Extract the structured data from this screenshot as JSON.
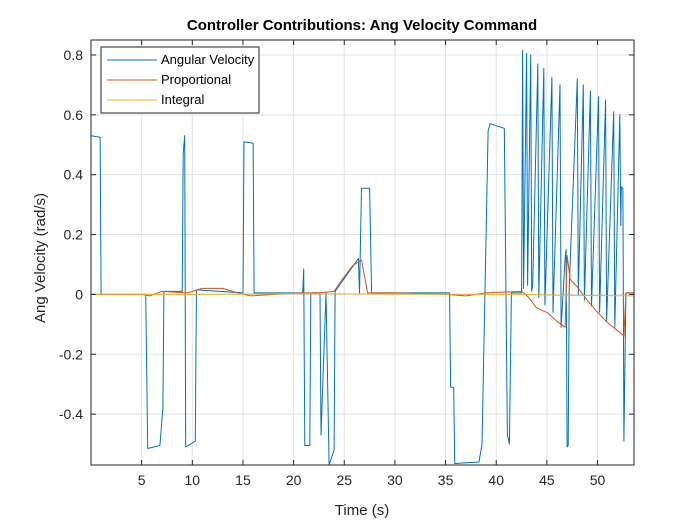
{
  "chart_data": {
    "type": "line",
    "title": "Controller Contributions: Ang Velocity Command",
    "xlabel": "Time (s)",
    "ylabel": "Ang Velocity (rad/s)",
    "xlim": [
      0,
      53.6
    ],
    "ylim": [
      -0.57,
      0.85
    ],
    "xticks": [
      5,
      10,
      15,
      20,
      25,
      30,
      35,
      40,
      45,
      50
    ],
    "yticks": [
      -0.4,
      -0.2,
      0,
      0.2,
      0.4,
      0.6,
      0.8
    ],
    "ytick_labels": [
      "-0.4",
      "-0.2",
      "0",
      "0.2",
      "0.4",
      "0.6",
      "0.8"
    ],
    "grid": true,
    "legend_position": "top-left",
    "series": [
      {
        "name": "Angular Velocity",
        "color": "#0072BD",
        "points": [
          [
            0,
            0.53
          ],
          [
            0.9,
            0.525
          ],
          [
            1.0,
            0
          ],
          [
            5.4,
            0
          ],
          [
            5.6,
            -0.515
          ],
          [
            6.8,
            -0.505
          ],
          [
            7.1,
            -0.38
          ],
          [
            7.2,
            0.01
          ],
          [
            9.0,
            0.01
          ],
          [
            9.1,
            0.47
          ],
          [
            9.25,
            0.53
          ],
          [
            9.35,
            -0.51
          ],
          [
            10.3,
            -0.49
          ],
          [
            10.4,
            0.015
          ],
          [
            15.0,
            0.005
          ],
          [
            15.1,
            0.51
          ],
          [
            16.0,
            0.505
          ],
          [
            16.1,
            0.005
          ],
          [
            20.9,
            0.005
          ],
          [
            21.0,
            0.085
          ],
          [
            21.1,
            -0.505
          ],
          [
            21.6,
            -0.505
          ],
          [
            21.7,
            0.005
          ],
          [
            22.6,
            0.005
          ],
          [
            22.7,
            -0.47
          ],
          [
            23.2,
            0.005
          ],
          [
            23.5,
            -0.57
          ],
          [
            24.0,
            -0.52
          ],
          [
            24.1,
            0.01
          ],
          [
            26.4,
            0.12
          ],
          [
            26.5,
            0.005
          ],
          [
            26.7,
            0.355
          ],
          [
            27.5,
            0.355
          ],
          [
            27.7,
            0.005
          ],
          [
            35.4,
            0.005
          ],
          [
            35.5,
            -0.31
          ],
          [
            35.8,
            -0.31
          ],
          [
            35.9,
            -0.565
          ],
          [
            38.3,
            -0.56
          ],
          [
            38.6,
            -0.5
          ],
          [
            39.2,
            0.545
          ],
          [
            39.4,
            0.57
          ],
          [
            40.8,
            0.555
          ],
          [
            41.1,
            -0.47
          ],
          [
            41.3,
            -0.5
          ],
          [
            41.5,
            0.005
          ],
          [
            42.5,
            0.005
          ],
          [
            42.6,
            0.815
          ],
          [
            42.7,
            0.02
          ],
          [
            43.0,
            0.805
          ],
          [
            43.1,
            0.03
          ],
          [
            43.4,
            0.8
          ],
          [
            43.5,
            0.01
          ],
          [
            43.6,
            0.03
          ],
          [
            44.1,
            0.77
          ],
          [
            44.2,
            -0.01
          ],
          [
            44.7,
            0.755
          ],
          [
            44.8,
            -0.035
          ],
          [
            45.5,
            0.725
          ],
          [
            45.6,
            -0.06
          ],
          [
            46.3,
            0.7
          ],
          [
            46.4,
            -0.11
          ],
          [
            46.8,
            0.12
          ],
          [
            46.9,
            0.15
          ],
          [
            47.0,
            -0.51
          ],
          [
            47.1,
            -0.505
          ],
          [
            47.2,
            0.02
          ],
          [
            48.0,
            0.72
          ],
          [
            48.1,
            0.0
          ],
          [
            48.6,
            0.7
          ],
          [
            48.7,
            -0.02
          ],
          [
            49.3,
            0.68
          ],
          [
            49.4,
            -0.04
          ],
          [
            50.1,
            0.66
          ],
          [
            50.2,
            -0.06
          ],
          [
            50.8,
            0.65
          ],
          [
            50.9,
            -0.09
          ],
          [
            51.6,
            0.61
          ],
          [
            51.7,
            -0.11
          ],
          [
            52.2,
            0.6
          ],
          [
            52.3,
            0.23
          ],
          [
            52.35,
            0.36
          ],
          [
            52.5,
            0.355
          ],
          [
            52.6,
            -0.49
          ],
          [
            52.8,
            0.005
          ],
          [
            53.6,
            0.005
          ]
        ]
      },
      {
        "name": "Proportional",
        "color": "#D95319",
        "points": [
          [
            0,
            0.0
          ],
          [
            5.0,
            0.0
          ],
          [
            5.8,
            -0.005
          ],
          [
            7.0,
            0.01
          ],
          [
            8.0,
            0.008
          ],
          [
            9.5,
            0.005
          ],
          [
            11.0,
            0.02
          ],
          [
            13.0,
            0.02
          ],
          [
            14.8,
            0.002
          ],
          [
            15.8,
            -0.005
          ],
          [
            18.0,
            0.0
          ],
          [
            20.9,
            0.005
          ],
          [
            22.5,
            0.005
          ],
          [
            24.0,
            0.01
          ],
          [
            24.8,
            0.05
          ],
          [
            25.8,
            0.095
          ],
          [
            26.7,
            0.115
          ],
          [
            27.3,
            0.005
          ],
          [
            30.0,
            0.005
          ],
          [
            35.0,
            0.0
          ],
          [
            37.0,
            -0.005
          ],
          [
            39.0,
            0.005
          ],
          [
            42.5,
            0.01
          ],
          [
            43.2,
            -0.01
          ],
          [
            44.0,
            -0.045
          ],
          [
            45.0,
            -0.06
          ],
          [
            46.0,
            -0.09
          ],
          [
            46.8,
            -0.11
          ],
          [
            47.0,
            0.13
          ],
          [
            47.3,
            0.05
          ],
          [
            48.0,
            0.025
          ],
          [
            49.0,
            -0.02
          ],
          [
            50.0,
            -0.06
          ],
          [
            51.0,
            -0.095
          ],
          [
            52.3,
            -0.13
          ],
          [
            52.6,
            -0.14
          ],
          [
            52.8,
            0.005
          ],
          [
            53.6,
            0.005
          ]
        ]
      },
      {
        "name": "Integral",
        "color": "#EDB120",
        "points": [
          [
            0,
            0.0
          ],
          [
            10.0,
            0.0
          ],
          [
            20.0,
            0.002
          ],
          [
            30.0,
            0.001
          ],
          [
            40.0,
            0.0
          ],
          [
            42.5,
            0.0
          ],
          [
            45.0,
            -0.002
          ],
          [
            50.0,
            -0.004
          ],
          [
            53.6,
            -0.005
          ]
        ]
      }
    ]
  }
}
